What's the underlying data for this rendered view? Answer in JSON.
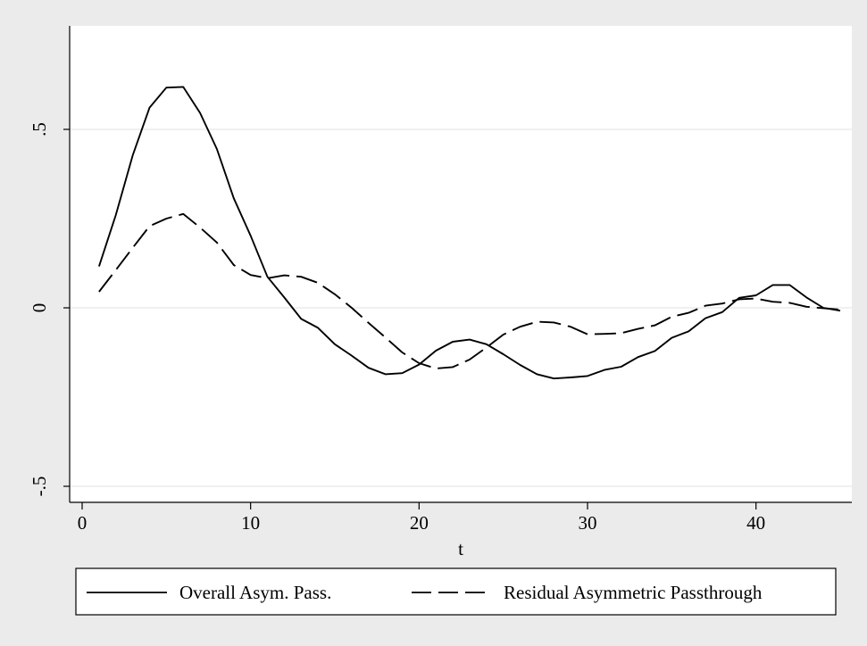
{
  "chart_data": {
    "type": "line",
    "title": "",
    "xlabel": "t",
    "ylabel": "",
    "xlim": [
      0,
      45
    ],
    "ylim": [
      -0.5,
      0.75
    ],
    "x_ticks": [
      0,
      10,
      20,
      30,
      40
    ],
    "x_tick_labels": [
      "0",
      "10",
      "20",
      "30",
      "40"
    ],
    "y_ticks": [
      -0.5,
      0,
      0.5
    ],
    "y_tick_labels": [
      "-.5",
      "0",
      ".5"
    ],
    "grid": true,
    "legend_position": "bottom",
    "x": [
      1,
      2,
      3,
      4,
      5,
      6,
      7,
      8,
      9,
      10,
      11,
      12,
      13,
      14,
      15,
      16,
      17,
      18,
      19,
      20,
      21,
      22,
      23,
      24,
      25,
      26,
      27,
      28,
      29,
      30,
      31,
      32,
      33,
      34,
      35,
      36,
      37,
      38,
      39,
      40,
      41,
      42,
      43,
      44,
      45
    ],
    "series": [
      {
        "name": "Overall Asym. Pass.",
        "style": "solid",
        "values": [
          0.116,
          0.26,
          0.427,
          0.561,
          0.617,
          0.619,
          0.546,
          0.445,
          0.307,
          0.202,
          0.087,
          0.029,
          -0.031,
          -0.056,
          -0.102,
          -0.134,
          -0.168,
          -0.186,
          -0.183,
          -0.159,
          -0.12,
          -0.095,
          -0.089,
          -0.102,
          -0.13,
          -0.16,
          -0.186,
          -0.198,
          -0.195,
          -0.191,
          -0.174,
          -0.165,
          -0.138,
          -0.121,
          -0.084,
          -0.066,
          -0.029,
          -0.012,
          0.028,
          0.035,
          0.064,
          0.064,
          0.029,
          0.0,
          -0.008
        ]
      },
      {
        "name": "Residual Asymmetric Passthrough",
        "style": "dashed",
        "values": [
          0.045,
          0.106,
          0.168,
          0.229,
          0.25,
          0.263,
          0.225,
          0.183,
          0.12,
          0.092,
          0.083,
          0.091,
          0.087,
          0.07,
          0.038,
          0.0,
          -0.042,
          -0.083,
          -0.125,
          -0.155,
          -0.17,
          -0.166,
          -0.145,
          -0.111,
          -0.075,
          -0.053,
          -0.039,
          -0.041,
          -0.053,
          -0.074,
          -0.073,
          -0.071,
          -0.059,
          -0.049,
          -0.025,
          -0.014,
          0.006,
          0.012,
          0.024,
          0.026,
          0.017,
          0.014,
          0.003,
          -0.001,
          -0.005
        ]
      }
    ]
  }
}
